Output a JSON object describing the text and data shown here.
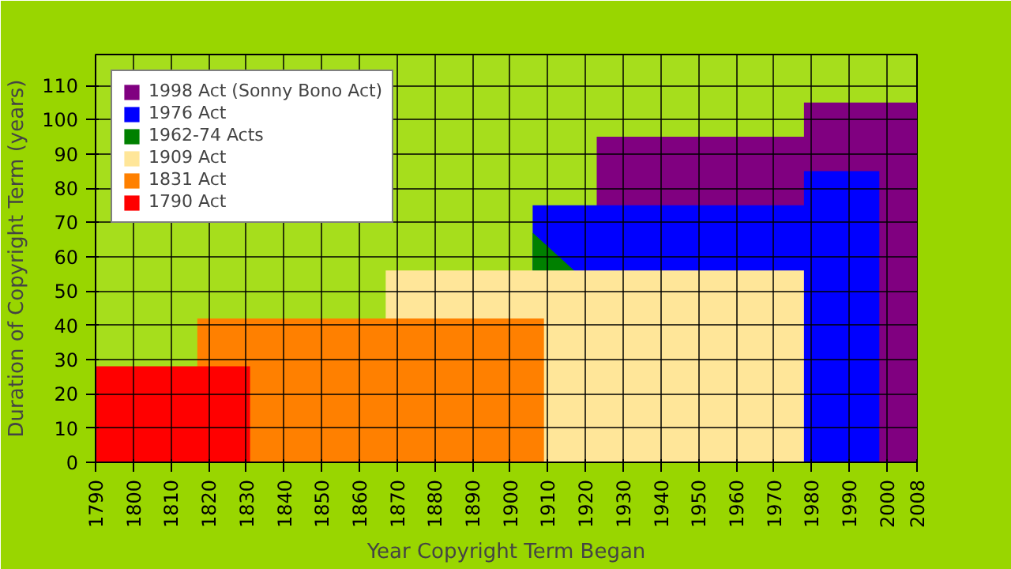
{
  "chart_data": {
    "type": "area",
    "xlabel": "Year Copyright Term Began",
    "ylabel": "Duration of Copyright Term (years)",
    "xlim": [
      1790,
      2008
    ],
    "ylim": [
      0,
      119
    ],
    "xticks": [
      1790,
      1800,
      1810,
      1820,
      1830,
      1840,
      1850,
      1860,
      1870,
      1880,
      1890,
      1900,
      1910,
      1920,
      1930,
      1940,
      1950,
      1960,
      1970,
      1980,
      1990,
      2000,
      2008
    ],
    "yticks": [
      0,
      10,
      20,
      30,
      40,
      50,
      60,
      70,
      80,
      90,
      100,
      110
    ],
    "grid": true,
    "legend": "top left",
    "series": [
      {
        "name": "1998 Act (Sonny Bono Act)",
        "color": "#800080",
        "x": [
          1923,
          1978,
          1978,
          2008
        ],
        "values": [
          95,
          95,
          105,
          105
        ]
      },
      {
        "name": "1976 Act",
        "color": "#0000ff",
        "x": [
          1906,
          1978,
          1978,
          1998
        ],
        "values": [
          75,
          75,
          85,
          85
        ]
      },
      {
        "name": "1962-74 Acts",
        "color": "#008000",
        "x": [
          1906,
          1917
        ],
        "values": [
          67,
          56
        ]
      },
      {
        "name": "1909 Act",
        "color": "#ffe699",
        "x": [
          1867,
          1978
        ],
        "values": [
          56,
          56
        ]
      },
      {
        "name": "1831 Act",
        "color": "#ff8000",
        "x": [
          1817,
          1909
        ],
        "values": [
          42,
          42
        ]
      },
      {
        "name": "1790 Act",
        "color": "#ff0000",
        "x": [
          1790,
          1831
        ],
        "values": [
          28,
          28
        ]
      }
    ]
  }
}
